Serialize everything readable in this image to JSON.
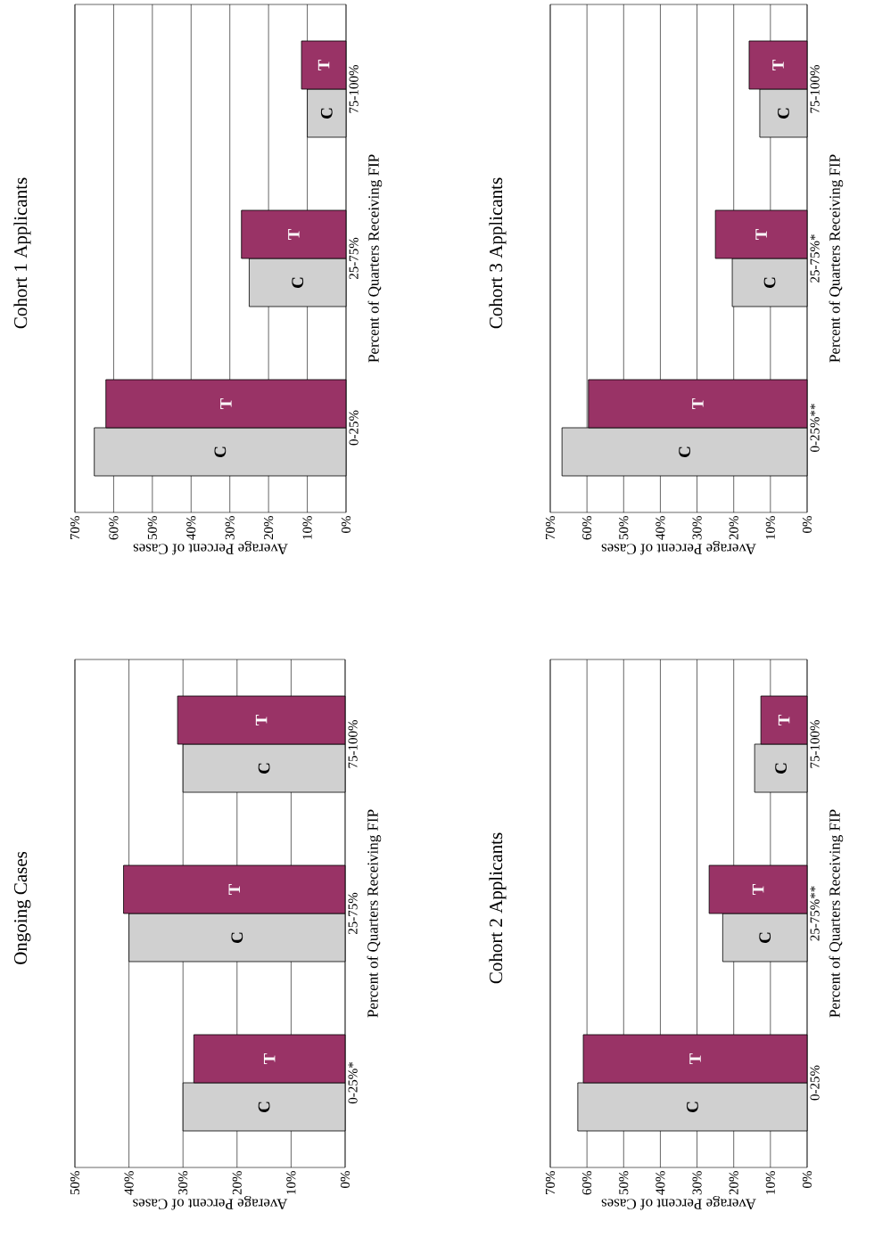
{
  "chart_data": [
    {
      "type": "bar",
      "orientation": "horizontal",
      "title": "Ongoing Cases",
      "ylabel": "Percent of Quarters Receiving FIP",
      "xlabel": "Average Percent of Cases",
      "categories": [
        "75-100%",
        "25-75%",
        "0-25%*"
      ],
      "series": [
        {
          "name": "C",
          "color": "#d0d0d0",
          "values": [
            30,
            40,
            30
          ]
        },
        {
          "name": "T",
          "color": "#993366",
          "values": [
            31,
            41,
            28
          ]
        }
      ],
      "xlim": [
        50,
        0
      ],
      "xticks": [
        {
          "value": 50,
          "label": "50%"
        },
        {
          "value": 40,
          "label": "40%"
        },
        {
          "value": 30,
          "label": "30%"
        },
        {
          "value": 20,
          "label": "20%"
        },
        {
          "value": 10,
          "label": "10%"
        },
        {
          "value": 0,
          "label": "0%"
        }
      ],
      "grid": "x"
    },
    {
      "type": "bar",
      "orientation": "horizontal",
      "title": "Cohort 1 Applicants",
      "ylabel": "Percent of Quarters Receiving FIP",
      "xlabel": "Average Percent of Cases",
      "categories": [
        "75-100%",
        "25-75%",
        "0-25%"
      ],
      "series": [
        {
          "name": "C",
          "color": "#d0d0d0",
          "values": [
            10,
            25,
            65
          ]
        },
        {
          "name": "T",
          "color": "#993366",
          "values": [
            11.5,
            27,
            62
          ]
        }
      ],
      "xlim": [
        70,
        0
      ],
      "xticks": [
        {
          "value": 70,
          "label": "70%"
        },
        {
          "value": 60,
          "label": "60%"
        },
        {
          "value": 50,
          "label": "50%"
        },
        {
          "value": 40,
          "label": "40%"
        },
        {
          "value": 30,
          "label": "30%"
        },
        {
          "value": 20,
          "label": "20%"
        },
        {
          "value": 10,
          "label": "10%"
        },
        {
          "value": 0,
          "label": "0%"
        }
      ],
      "grid": "x"
    },
    {
      "type": "bar",
      "orientation": "horizontal",
      "title": "Cohort 2 Applicants",
      "ylabel": "Percent of Quarters Receiving FIP",
      "xlabel": "Average Percent of Cases",
      "categories": [
        "75-100%",
        "25-75%**",
        "0-25%"
      ],
      "series": [
        {
          "name": "C",
          "color": "#d0d0d0",
          "values": [
            14.3,
            23,
            62.5
          ]
        },
        {
          "name": "T",
          "color": "#993366",
          "values": [
            12.6,
            26.7,
            61
          ]
        }
      ],
      "xlim": [
        70,
        0
      ],
      "xticks": [
        {
          "value": 70,
          "label": "70%"
        },
        {
          "value": 60,
          "label": "60%"
        },
        {
          "value": 50,
          "label": "50%"
        },
        {
          "value": 40,
          "label": "40%"
        },
        {
          "value": 30,
          "label": "30%"
        },
        {
          "value": 20,
          "label": "20%"
        },
        {
          "value": 10,
          "label": "10%"
        },
        {
          "value": 0,
          "label": "0%"
        }
      ],
      "grid": "x"
    },
    {
      "type": "bar",
      "orientation": "horizontal",
      "title": "Cohort 3 Applicants",
      "ylabel": "Percent of Quarters Receiving FIP",
      "xlabel": "Average Percent of Cases",
      "categories": [
        "75-100%",
        "25-75%*",
        "0-25%**"
      ],
      "series": [
        {
          "name": "C",
          "color": "#d0d0d0",
          "values": [
            12.9,
            20.4,
            66.8
          ]
        },
        {
          "name": "T",
          "color": "#993366",
          "values": [
            15.8,
            25,
            59.6
          ]
        }
      ],
      "xlim": [
        70,
        0
      ],
      "xticks": [
        {
          "value": 70,
          "label": "70%"
        },
        {
          "value": 60,
          "label": "60%"
        },
        {
          "value": 50,
          "label": "50%"
        },
        {
          "value": 40,
          "label": "40%"
        },
        {
          "value": 30,
          "label": "30%"
        },
        {
          "value": 20,
          "label": "20%"
        },
        {
          "value": 10,
          "label": "10%"
        },
        {
          "value": 0,
          "label": "0%"
        }
      ],
      "grid": "x"
    }
  ]
}
